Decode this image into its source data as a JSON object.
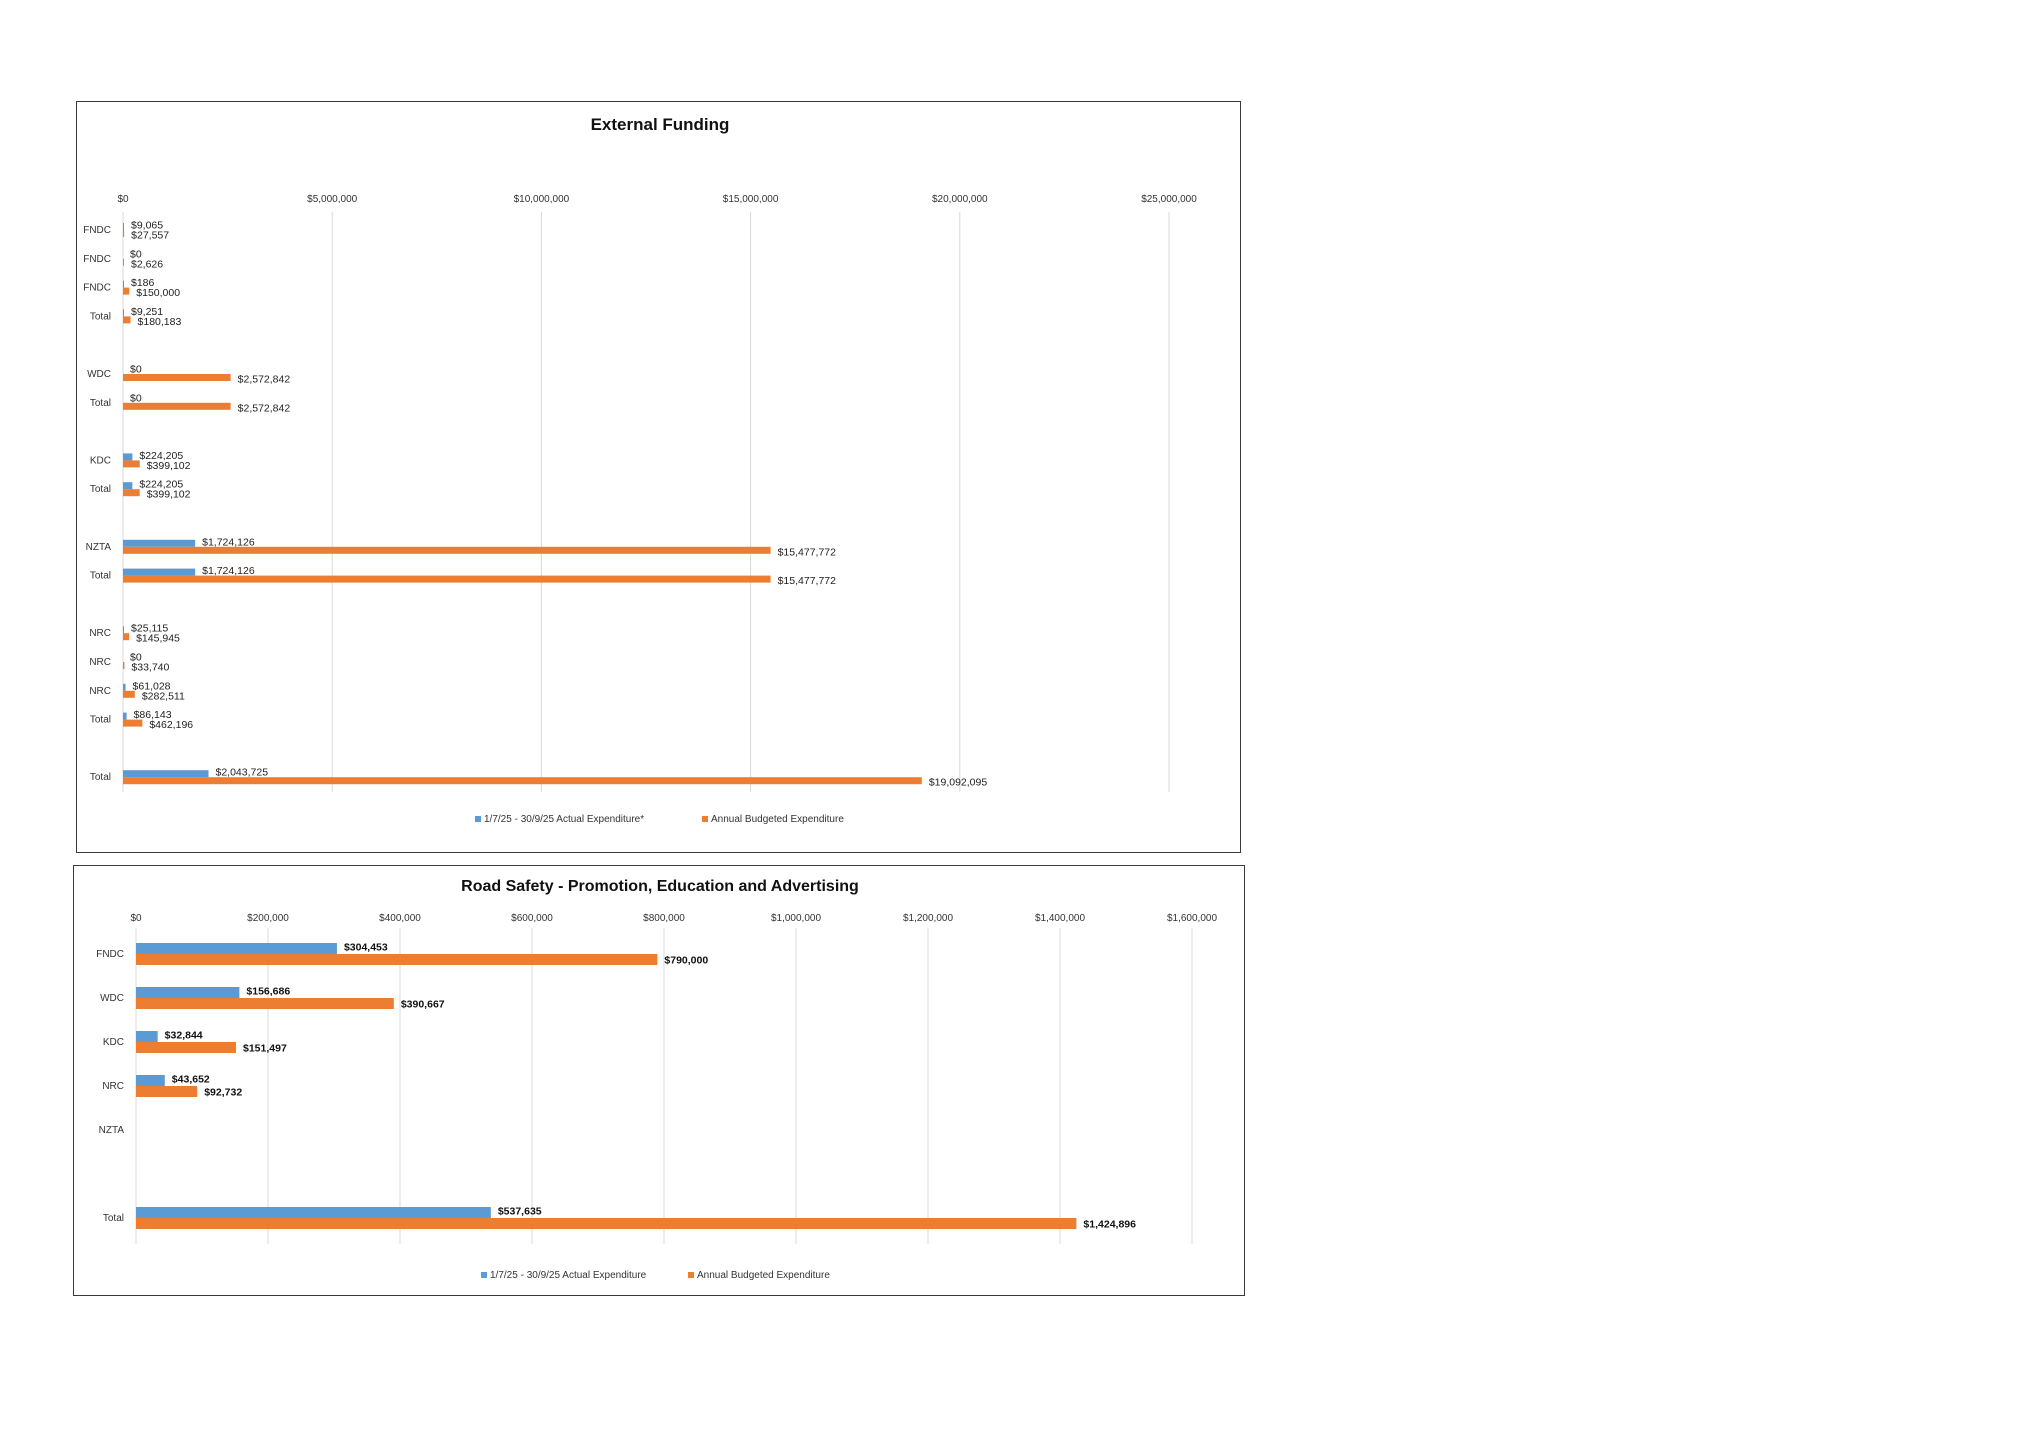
{
  "colors": {
    "actual": "#5B9BD5",
    "budget": "#ED7D31",
    "grid": "#D9D9D9",
    "border": "#3a3a3a"
  },
  "chart_data": [
    {
      "type": "bar",
      "orientation": "horizontal",
      "title": "External Funding",
      "xlim": [
        0,
        25000000
      ],
      "ticks": [
        0,
        5000000,
        10000000,
        15000000,
        20000000,
        25000000
      ],
      "tick_labels": [
        "$0",
        "$5,000,000",
        "$10,000,000",
        "$15,000,000",
        "$20,000,000",
        "$25,000,000"
      ],
      "categories": [
        "FNDC",
        "FNDC",
        "FNDC",
        "Total",
        "",
        "WDC",
        "Total",
        "",
        "KDC",
        "Total",
        "",
        "NZTA",
        "Total",
        "",
        "NRC",
        "NRC",
        "NRC",
        "Total",
        "",
        "Total"
      ],
      "series": [
        {
          "name": "1/7/25 - 30/9/25 Actual Expenditure*",
          "values": [
            9065,
            0,
            186,
            9251,
            null,
            0,
            0,
            null,
            224205,
            224205,
            null,
            1724126,
            1724126,
            null,
            25115,
            0,
            61028,
            86143,
            null,
            2043725
          ],
          "labels": [
            "$9,065",
            "$0",
            "$186",
            "$9,251",
            "",
            "$0",
            "$0",
            "",
            "$224,205",
            "$224,205",
            "",
            "$1,724,126",
            "$1,724,126",
            "",
            "$25,115",
            "$0",
            "$61,028",
            "$86,143",
            "",
            "$2,043,725"
          ]
        },
        {
          "name": "Annual Budgeted Expenditure",
          "values": [
            27557,
            2626,
            150000,
            180183,
            null,
            2572842,
            2572842,
            null,
            399102,
            399102,
            null,
            15477772,
            15477772,
            null,
            145945,
            33740,
            282511,
            462196,
            null,
            19092095
          ],
          "labels": [
            "$27,557",
            "$2,626",
            "$150,000",
            "$180,183",
            "",
            "$2,572,842",
            "$2,572,842",
            "",
            "$399,102",
            "$399,102",
            "",
            "$15,477,772",
            "$15,477,772",
            "",
            "$145,945",
            "$33,740",
            "$282,511",
            "$462,196",
            "",
            "$19,092,095"
          ]
        }
      ],
      "legend": "bottom-center",
      "grid": true
    },
    {
      "type": "bar",
      "orientation": "horizontal",
      "title": "Road Safety - Promotion, Education and Advertising",
      "xlim": [
        0,
        1600000
      ],
      "ticks": [
        0,
        200000,
        400000,
        600000,
        800000,
        1000000,
        1200000,
        1400000,
        1600000
      ],
      "tick_labels": [
        "$0",
        "$200,000",
        "$400,000",
        "$600,000",
        "$800,000",
        "$1,000,000",
        "$1,200,000",
        "$1,400,000",
        "$1,600,000"
      ],
      "categories": [
        "FNDC",
        "WDC",
        "KDC",
        "NRC",
        "NZTA",
        "",
        "Total"
      ],
      "series": [
        {
          "name": "1/7/25 - 30/9/25 Actual Expenditure",
          "values": [
            304453,
            156686,
            32844,
            43652,
            null,
            null,
            537635
          ],
          "labels": [
            "$304,453",
            "$156,686",
            "$32,844",
            "$43,652",
            "",
            "",
            "$537,635"
          ]
        },
        {
          "name": "Annual Budgeted Expenditure",
          "values": [
            790000,
            390667,
            151497,
            92732,
            null,
            null,
            1424896
          ],
          "labels": [
            "$790,000",
            "$390,667",
            "$151,497",
            "$92,732",
            "",
            "",
            "$1,424,896"
          ]
        }
      ],
      "legend": "bottom-center",
      "grid": true
    }
  ]
}
